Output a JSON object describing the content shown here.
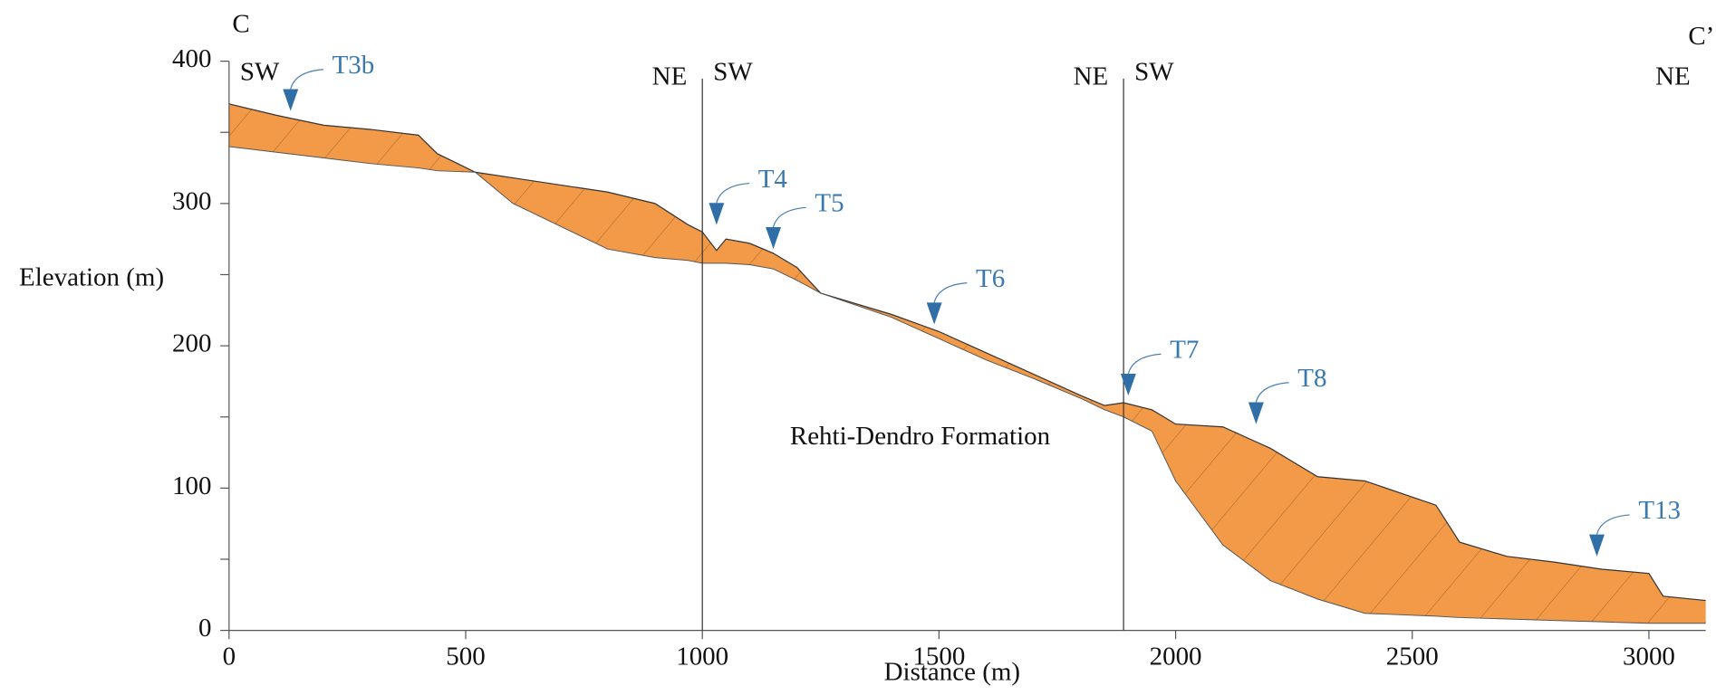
{
  "chart_data": {
    "type": "profile",
    "x_label": "Distance (m)",
    "y_label": "Elevation (m)",
    "start_label": "C",
    "end_label": "C’",
    "xlim": [
      0,
      3120
    ],
    "xticks": [
      0,
      500,
      1000,
      1500,
      2000,
      2500,
      3000
    ],
    "ylim": [
      0,
      400
    ],
    "yticks": [
      0,
      100,
      200,
      300,
      400
    ],
    "yticks_minor": [
      50,
      150,
      250,
      350
    ],
    "dividers": [
      1000,
      1890
    ],
    "sections": [
      {
        "start": "SW",
        "end": "NE"
      },
      {
        "start": "SW",
        "end": "NE"
      },
      {
        "start": "SW",
        "end": "NE"
      }
    ],
    "x": [
      0,
      100,
      200,
      300,
      400,
      440,
      520,
      600,
      800,
      900,
      970,
      1000,
      1030,
      1050,
      1100,
      1150,
      1200,
      1250,
      1400,
      1500,
      1600,
      1700,
      1800,
      1850,
      1890,
      1950,
      2000,
      2100,
      2200,
      2300,
      2400,
      2550,
      2600,
      2700,
      2800,
      2900,
      3000,
      3030,
      3120
    ],
    "surface": [
      370,
      362,
      355,
      352,
      348,
      335,
      322,
      318,
      308,
      300,
      285,
      280,
      267,
      275,
      272,
      265,
      255,
      237,
      222,
      210,
      195,
      180,
      165,
      158,
      160,
      155,
      145,
      143,
      128,
      108,
      105,
      88,
      62,
      52,
      48,
      43,
      40,
      24,
      21
    ],
    "base": [
      340,
      336,
      332,
      328,
      325,
      323,
      322,
      300,
      268,
      262,
      260,
      258,
      258,
      258,
      257,
      254,
      246,
      237,
      220,
      205,
      190,
      177,
      163,
      155,
      150,
      140,
      105,
      60,
      35,
      22,
      12,
      10,
      9,
      8,
      7,
      6,
      5,
      5,
      5
    ],
    "color": "#f29a48",
    "formation": {
      "label": "Rehti-Dendro Formation",
      "x": 1460,
      "y": 135
    },
    "annotations": [
      {
        "label": "T3b",
        "x": 130,
        "y": 365
      },
      {
        "label": "T4",
        "x": 1030,
        "y": 285
      },
      {
        "label": "T5",
        "x": 1150,
        "y": 268
      },
      {
        "label": "T6",
        "x": 1490,
        "y": 215
      },
      {
        "label": "T7",
        "x": 1900,
        "y": 165
      },
      {
        "label": "T8",
        "x": 2170,
        "y": 145
      },
      {
        "label": "T13",
        "x": 2890,
        "y": 52
      }
    ]
  }
}
